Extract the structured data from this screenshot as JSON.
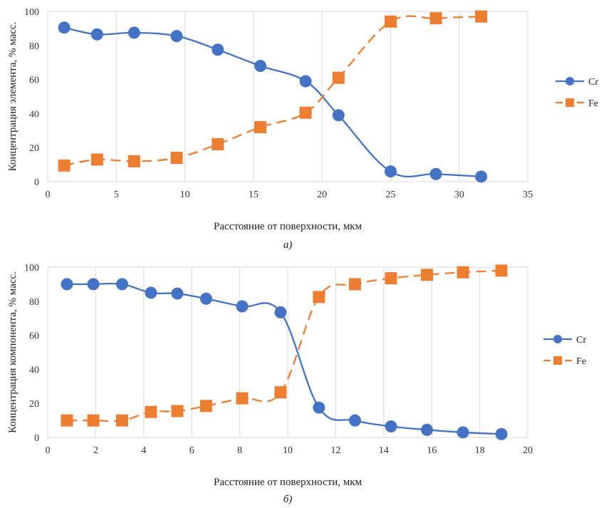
{
  "chart_data": [
    {
      "type": "line",
      "caption": "а)",
      "xlabel": "Расстояние от поверхности, мкм",
      "ylabel": "Концентрация элемента, % масс.",
      "xlim": [
        0,
        35
      ],
      "ylim": [
        0,
        100
      ],
      "xticks": [
        "0",
        "5",
        "10",
        "15",
        "20",
        "25",
        "30",
        "35"
      ],
      "yticks": [
        "0",
        "20",
        "40",
        "60",
        "80",
        "100"
      ],
      "grid": "vertical",
      "legend_position": "right",
      "series": [
        {
          "name": "Cr",
          "color": "#4472C4",
          "marker": "circle",
          "dash": "solid",
          "x": [
            1.2,
            3.6,
            6.3,
            9.4,
            12.4,
            15.5,
            18.8,
            21.2,
            25.0,
            28.3,
            31.6
          ],
          "y": [
            90.5,
            86.5,
            87.5,
            85.5,
            77.5,
            68,
            59,
            39,
            6,
            4.5,
            3
          ]
        },
        {
          "name": "Fe",
          "color": "#ED7D31",
          "marker": "square",
          "dash": "dashed",
          "x": [
            1.2,
            3.6,
            6.3,
            9.4,
            12.4,
            15.5,
            18.8,
            21.2,
            25.0,
            28.3,
            31.6
          ],
          "y": [
            9.5,
            13,
            12,
            14,
            22,
            32,
            40.5,
            61,
            94,
            96,
            97
          ]
        }
      ]
    },
    {
      "type": "line",
      "caption": "б)",
      "xlabel": "Расстояние от поверхности, мкм",
      "ylabel": "Концентрация компонента, % масс.",
      "xlim": [
        0,
        20
      ],
      "ylim": [
        0,
        100
      ],
      "xticks": [
        "0",
        "2",
        "4",
        "6",
        "8",
        "10",
        "12",
        "14",
        "16",
        "18",
        "20"
      ],
      "yticks": [
        "0",
        "20",
        "40",
        "60",
        "80",
        "100"
      ],
      "grid": "vertical",
      "legend_position": "right",
      "series": [
        {
          "name": "Cr",
          "color": "#4472C4",
          "marker": "circle",
          "dash": "solid",
          "x": [
            0.8,
            1.9,
            3.1,
            4.3,
            5.4,
            6.6,
            8.1,
            9.7,
            11.3,
            12.8,
            14.3,
            15.8,
            17.3,
            18.9
          ],
          "y": [
            90,
            90,
            90,
            85,
            84.5,
            81.5,
            77,
            73.5,
            17.5,
            10,
            6.5,
            4.5,
            3,
            2
          ]
        },
        {
          "name": "Fe",
          "color": "#ED7D31",
          "marker": "square",
          "dash": "dashed",
          "x": [
            0.8,
            1.9,
            3.1,
            4.3,
            5.4,
            6.6,
            8.1,
            9.7,
            11.3,
            12.8,
            14.3,
            15.8,
            17.3,
            18.9
          ],
          "y": [
            10,
            10,
            10,
            15,
            15.5,
            18.5,
            23,
            26.5,
            82.5,
            90,
            93.5,
            95.5,
            97,
            98
          ]
        }
      ]
    }
  ]
}
